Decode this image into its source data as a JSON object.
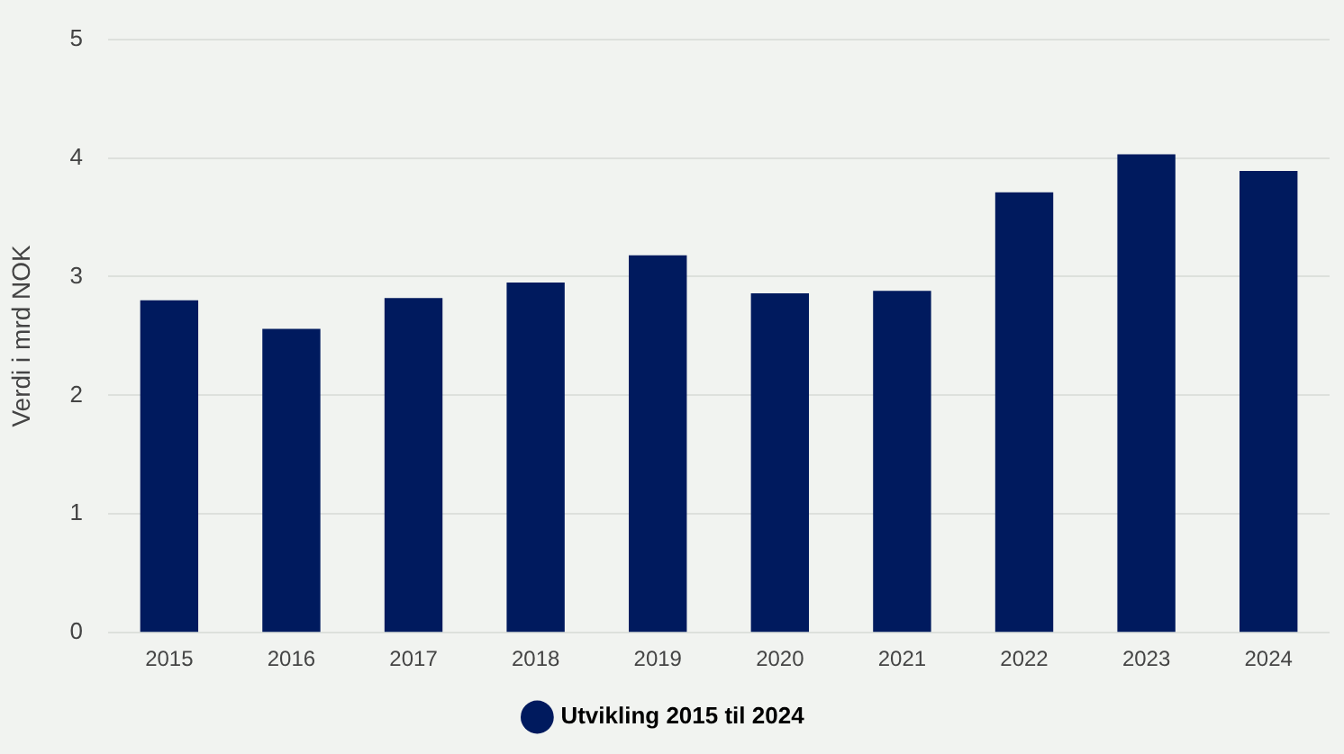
{
  "chart_data": {
    "type": "bar",
    "ylabel": "Verdi i mrd NOK",
    "categories": [
      "2015",
      "2016",
      "2017",
      "2018",
      "2019",
      "2020",
      "2021",
      "2022",
      "2023",
      "2024"
    ],
    "series": [
      {
        "name": "Utvikling 2015 til 2024",
        "color": "#001a5e",
        "values": [
          2.8,
          2.56,
          2.82,
          2.95,
          3.18,
          2.86,
          2.88,
          3.71,
          4.03,
          3.89
        ]
      }
    ],
    "ylim": [
      0,
      5
    ],
    "yticks": [
      0,
      1,
      2,
      3,
      4,
      5
    ],
    "grid": "y",
    "legend": "bottom"
  }
}
